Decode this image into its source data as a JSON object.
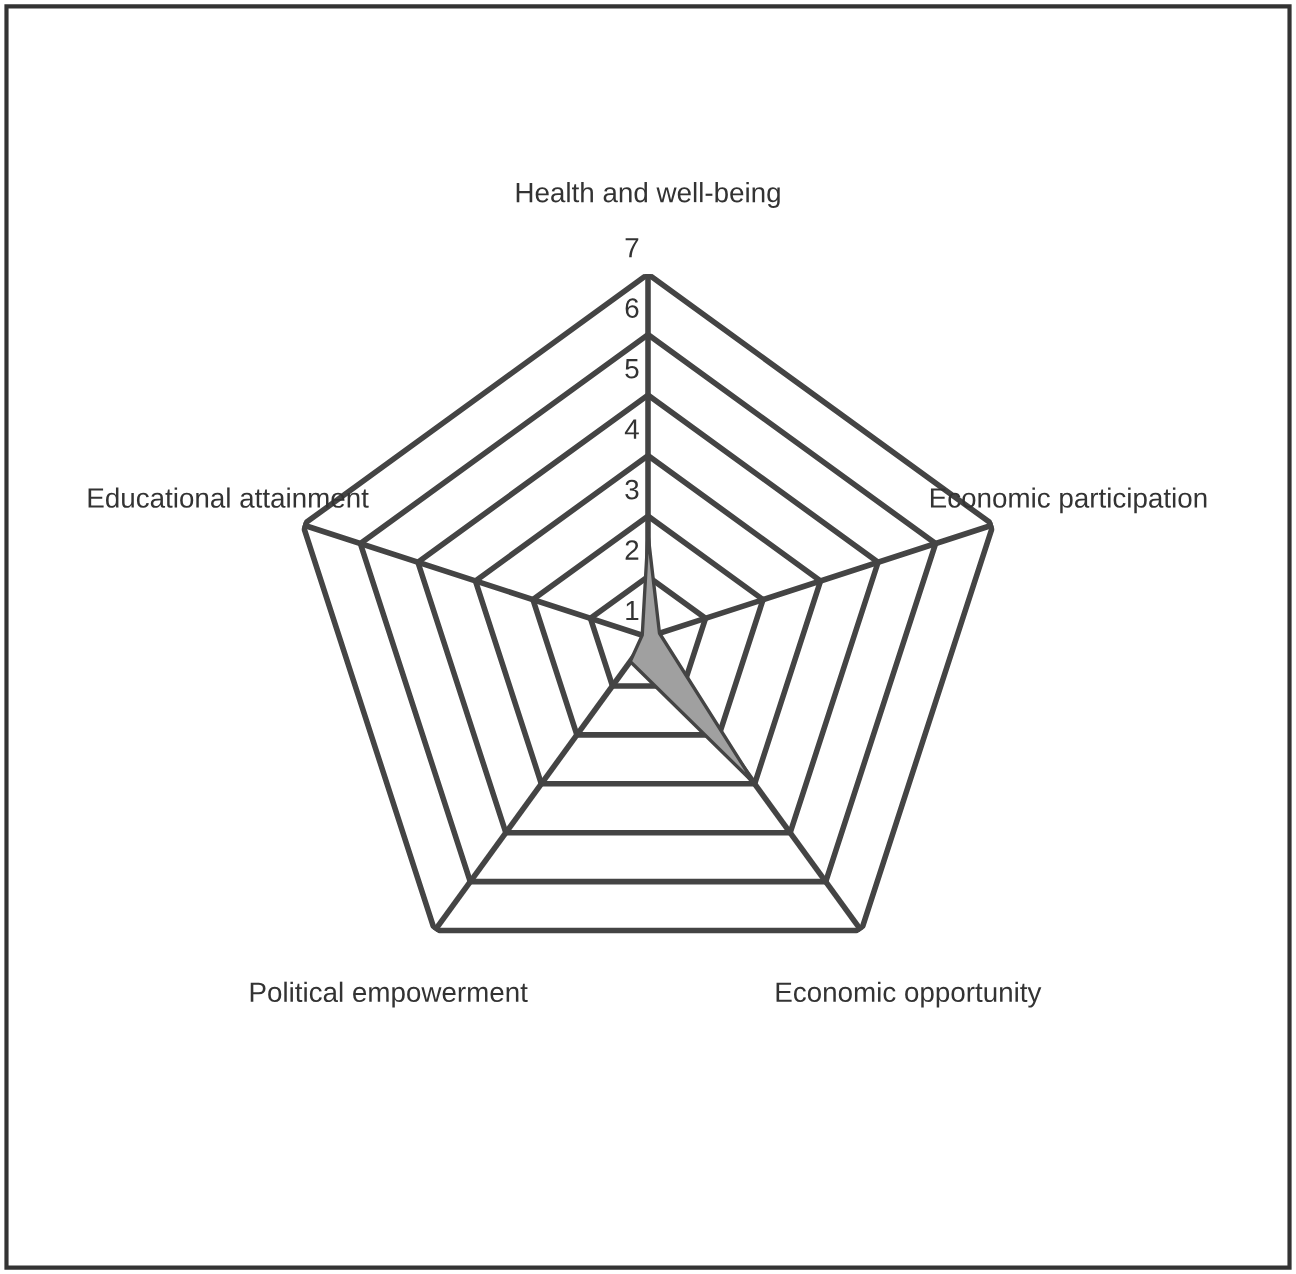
{
  "chart_data": {
    "type": "radar",
    "categories": [
      "Health and well-being",
      "Economic participation",
      "Economic opportunity",
      "Political empowerment",
      "Educational attainment"
    ],
    "series": [
      {
        "color": "#a0a0a0",
        "values": [
          2.7,
          1.2,
          4.0,
          1.5,
          1.1
        ]
      }
    ],
    "ylim": [
      1,
      7
    ],
    "yticks": [
      1,
      2,
      3,
      4,
      5,
      6,
      7
    ],
    "grid": true,
    "legend": false
  }
}
